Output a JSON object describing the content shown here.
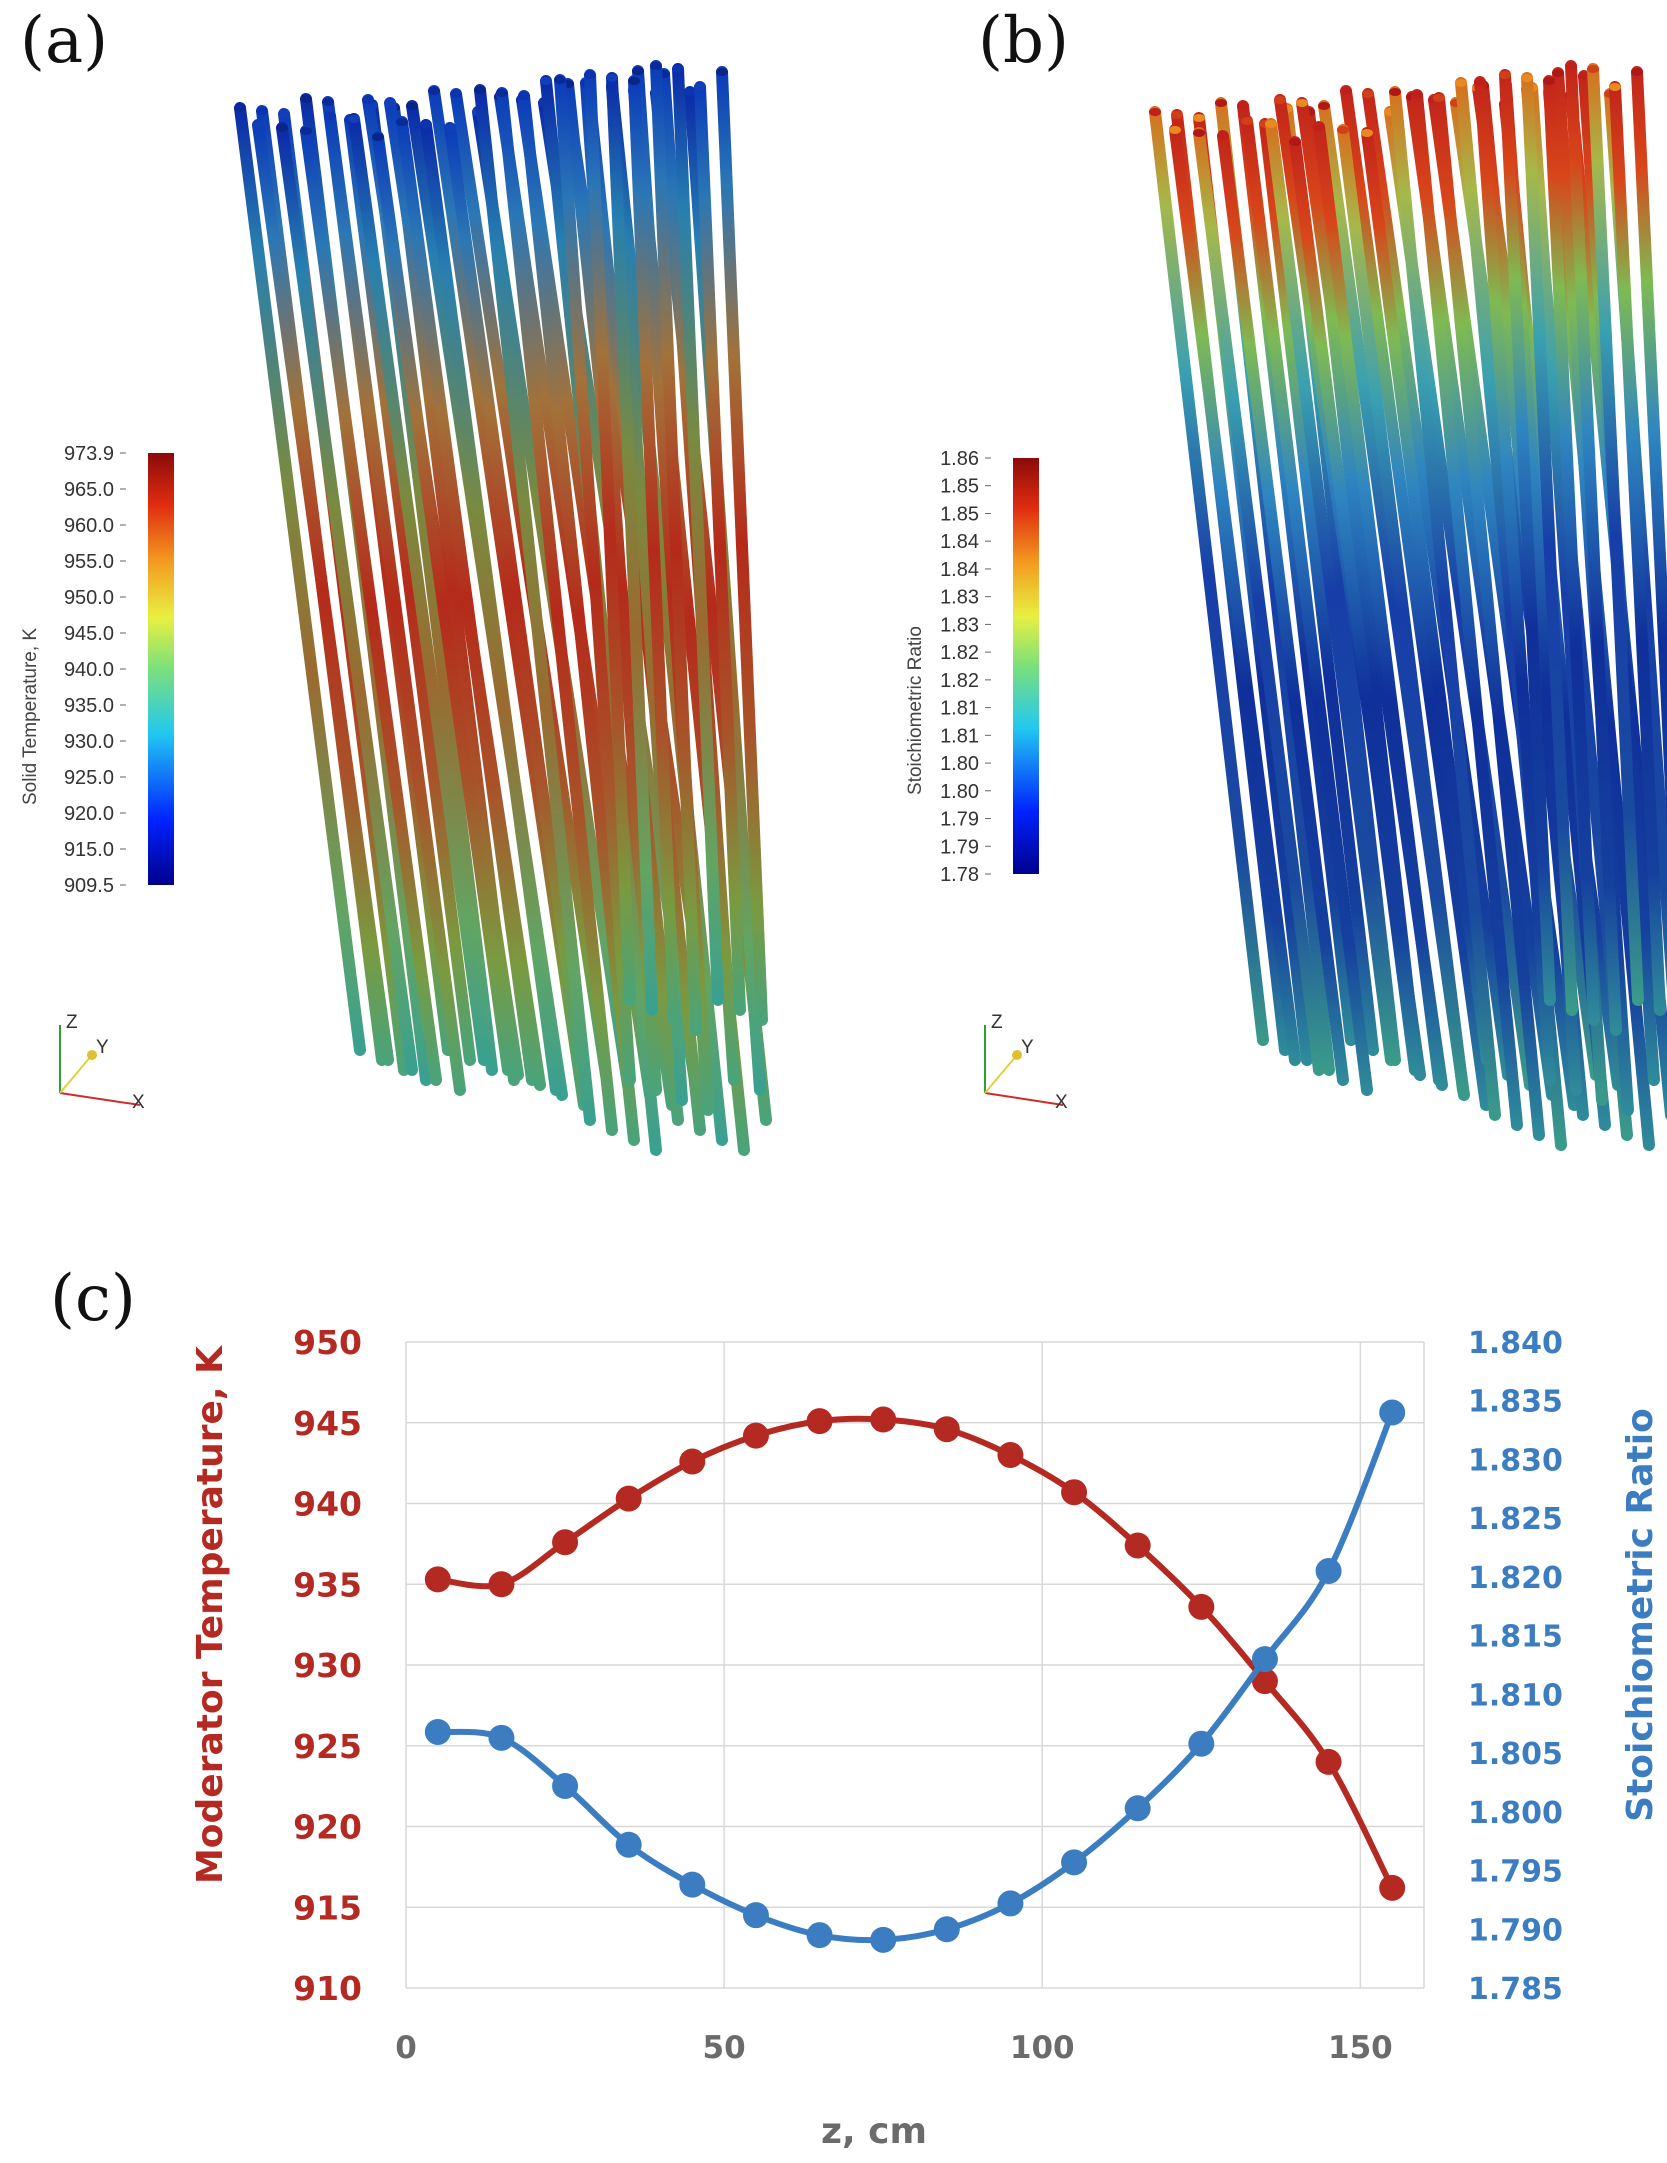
{
  "colors": {
    "temperature": "#b42a22",
    "stoichiometric": "#3c7dc2",
    "grid": "#d8d8d8",
    "x_axis_text": "#6b6b6b"
  },
  "panel_a": {
    "label": "(a)",
    "colorbar_title": "Solid Temperature, K",
    "colorbar_ticks": [
      "973.9",
      "965.0",
      "960.0",
      "955.0",
      "950.0",
      "945.0",
      "940.0",
      "935.0",
      "930.0",
      "925.0",
      "920.0",
      "915.0",
      "909.5"
    ],
    "axes": {
      "z": "Z",
      "y": "Y",
      "x": "X"
    }
  },
  "panel_b": {
    "label": "(b)",
    "colorbar_title": "Stoichiometric Ratio",
    "colorbar_ticks": [
      "1.86",
      "1.85",
      "1.85",
      "1.84",
      "1.84",
      "1.83",
      "1.83",
      "1.82",
      "1.82",
      "1.81",
      "1.81",
      "1.80",
      "1.80",
      "1.79",
      "1.79",
      "1.78"
    ],
    "axes": {
      "z": "Z",
      "y": "Y",
      "x": "X"
    }
  },
  "panel_c": {
    "label": "(c)"
  },
  "chart_data": {
    "type": "line",
    "xlabel": "z, cm",
    "ylabel": "Moderator Temperature, K",
    "y2label": "Stoichiometric Ratio",
    "xlim": [
      0,
      160
    ],
    "ylim": [
      910,
      950
    ],
    "y2lim": [
      1.785,
      1.84
    ],
    "x_ticks": [
      "0",
      "50",
      "100",
      "150"
    ],
    "y_ticks": [
      "910",
      "915",
      "920",
      "925",
      "930",
      "935",
      "940",
      "945",
      "950"
    ],
    "y2_ticks": [
      "1.785",
      "1.790",
      "1.795",
      "1.800",
      "1.805",
      "1.810",
      "1.815",
      "1.820",
      "1.825",
      "1.830",
      "1.835",
      "1.840"
    ],
    "grid": true,
    "x": [
      5,
      15,
      25,
      35,
      45,
      55,
      65,
      75,
      85,
      95,
      105,
      115,
      125,
      135,
      145,
      155
    ],
    "series": [
      {
        "axis": "left",
        "color": "#b42a22",
        "values": [
          935.3,
          935.0,
          937.6,
          940.3,
          942.6,
          944.2,
          945.1,
          945.2,
          944.6,
          943.0,
          940.7,
          937.4,
          933.6,
          929.0,
          924.0,
          916.2
        ]
      },
      {
        "axis": "right",
        "color": "#3c7dc2",
        "values": [
          1.8068,
          1.8063,
          1.8022,
          1.7972,
          1.7938,
          1.7912,
          1.7895,
          1.7891,
          1.79,
          1.7922,
          1.7957,
          1.8003,
          1.8058,
          1.813,
          1.8205,
          1.834
        ]
      }
    ]
  }
}
